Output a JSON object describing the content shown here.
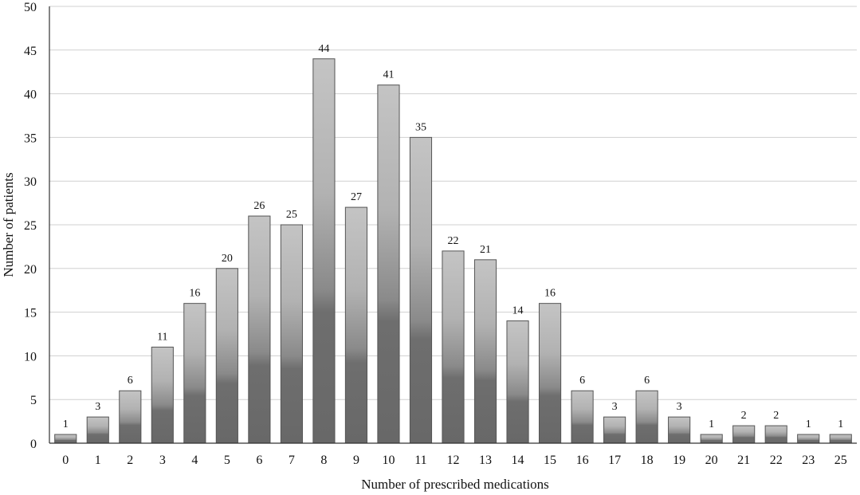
{
  "chart_data": {
    "type": "bar",
    "title": "",
    "xlabel": "Number of prescribed medications",
    "ylabel": "Number of patients",
    "categories": [
      "0",
      "1",
      "2",
      "3",
      "4",
      "5",
      "6",
      "7",
      "8",
      "9",
      "10",
      "11",
      "12",
      "13",
      "14",
      "15",
      "16",
      "17",
      "18",
      "19",
      "20",
      "21",
      "22",
      "23",
      "25"
    ],
    "values": [
      1,
      3,
      6,
      11,
      16,
      20,
      26,
      25,
      44,
      27,
      41,
      35,
      22,
      21,
      14,
      16,
      6,
      3,
      6,
      3,
      1,
      2,
      2,
      1,
      1
    ],
    "ylim": [
      0,
      50
    ],
    "yticks": [
      0,
      5,
      10,
      15,
      20,
      25,
      30,
      35,
      40,
      45,
      50
    ],
    "grid": true,
    "legend": "none",
    "colors": {
      "bar_light": "#c2c2c2",
      "bar_dark": "#6b6b6b",
      "bar_stroke": "#555555",
      "grid": "#d0d0d0",
      "axis": "#333333"
    }
  }
}
